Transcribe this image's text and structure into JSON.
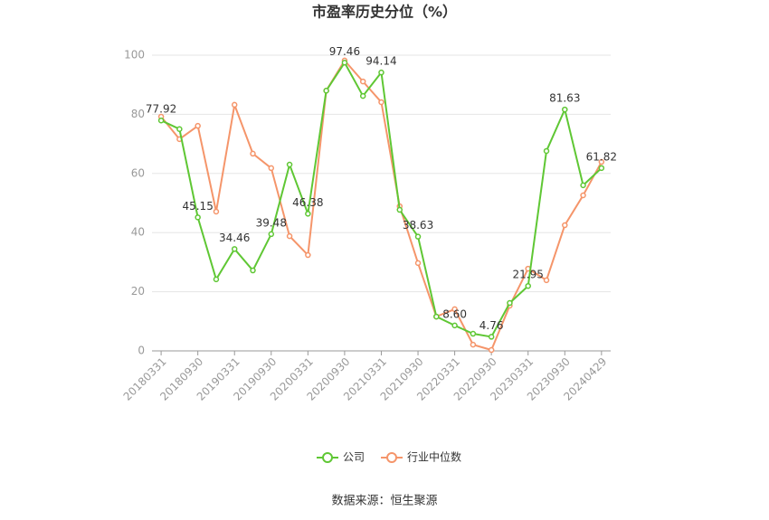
{
  "chart_data": {
    "type": "line",
    "title": "市盈率历史分位（%）",
    "source": "数据来源：恒生聚源",
    "categories": [
      "20180331",
      null,
      "20180930",
      null,
      "20190331",
      null,
      "20190930",
      null,
      "20200331",
      null,
      "20200930",
      null,
      "20210331",
      null,
      "20210930",
      null,
      "20220331",
      null,
      "20220930",
      null,
      "20230331",
      null,
      "20230930",
      null,
      "20240429"
    ],
    "series": [
      {
        "name": "公司",
        "color": "#5fc734",
        "values": [
          77.92,
          75,
          45.15,
          24.2,
          34.46,
          27.2,
          39.48,
          63,
          46.38,
          88,
          97.46,
          86.2,
          94.14,
          47.7,
          38.63,
          11.6,
          8.6,
          5.8,
          4.76,
          16.2,
          21.95,
          67.6,
          81.63,
          56,
          61.82
        ],
        "value_labels": [
          "77.92",
          null,
          "45.15",
          null,
          "34.46",
          null,
          "39.48",
          null,
          "46.38",
          null,
          "97.46",
          null,
          "94.14",
          null,
          "38.63",
          null,
          "8.60",
          null,
          "4.76",
          null,
          "21.95",
          null,
          "81.63",
          null,
          "61.82"
        ]
      },
      {
        "name": "行业中位数",
        "color": "#f5956a",
        "values": [
          79.2,
          71.6,
          76.1,
          47.1,
          83.2,
          66.7,
          61.8,
          38.8,
          32.4,
          88,
          98.2,
          91.1,
          84.1,
          48.9,
          29.7,
          11.6,
          14.1,
          2.1,
          0.3,
          15.3,
          27.8,
          23.9,
          42.5,
          52.6,
          63.9
        ]
      }
    ],
    "ylim": [
      0,
      100
    ],
    "yticks": [
      0,
      20,
      40,
      60,
      80,
      100
    ],
    "grid": true,
    "legend": "bottom"
  }
}
